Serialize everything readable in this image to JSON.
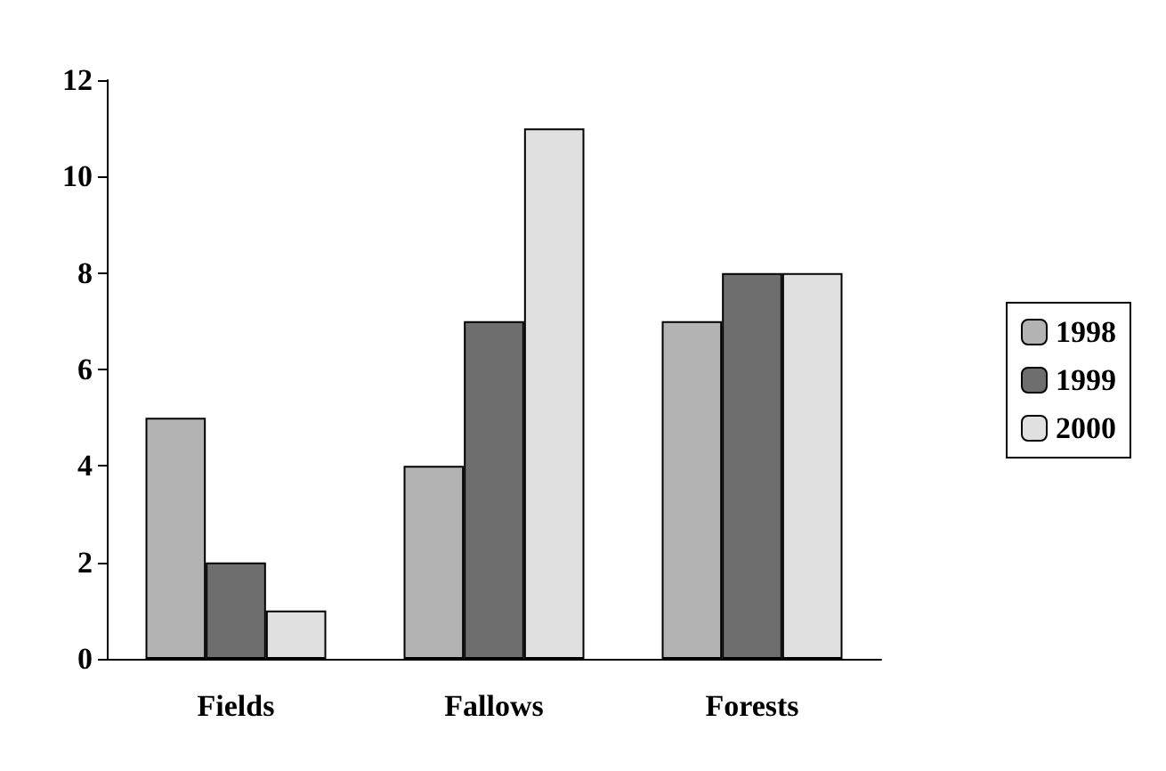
{
  "chart_data": {
    "type": "bar",
    "categories": [
      "Fields",
      "Fallows",
      "Forests"
    ],
    "series": [
      {
        "name": "1998",
        "color": "#b3b3b3",
        "values": [
          5,
          4,
          7
        ]
      },
      {
        "name": "1999",
        "color": "#6e6e6e",
        "values": [
          2,
          7,
          8
        ]
      },
      {
        "name": "2000",
        "color": "#e0e0e0",
        "values": [
          1,
          11,
          8
        ]
      }
    ],
    "ylim": [
      0,
      12
    ],
    "yticks": [
      0,
      2,
      4,
      6,
      8,
      10,
      12
    ],
    "grid": false,
    "legend": "right"
  }
}
